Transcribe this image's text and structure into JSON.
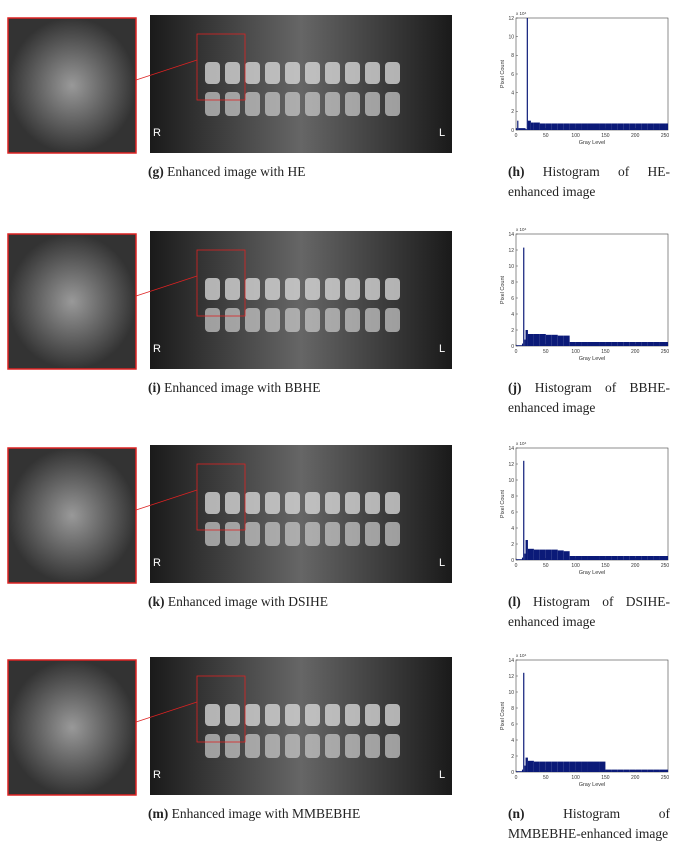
{
  "rows": [
    {
      "image_caption": {
        "letter": "(g)",
        "text": "Enhanced image with HE"
      },
      "image_marks": {
        "left": "R",
        "right": "L"
      },
      "histogram_caption": {
        "letter": "(h)",
        "text": "Histogram of HE-enhanced image"
      },
      "histogram": {
        "type": "bar",
        "y_label": "Pixel Count",
        "x_label": "Gray Level",
        "scale_label": "x 10⁴",
        "color": "#0b1a78",
        "x": [
          0,
          2,
          4,
          16,
          18,
          20,
          25,
          30,
          40,
          50,
          60,
          70,
          80,
          90,
          100,
          110,
          120,
          130,
          140,
          150,
          160,
          170,
          180,
          190,
          200,
          210,
          220,
          230,
          240,
          250
        ],
        "values": [
          0.2,
          1.0,
          0.2,
          0.1,
          12,
          1.0,
          0.8,
          0.8,
          0.7,
          0.7,
          0.7,
          0.7,
          0.7,
          0.7,
          0.7,
          0.7,
          0.7,
          0.7,
          0.7,
          0.7,
          0.7,
          0.7,
          0.7,
          0.7,
          0.7,
          0.7,
          0.7,
          0.7,
          0.7,
          0.7
        ],
        "xlim": [
          0,
          255
        ],
        "ylim": [
          0,
          12
        ],
        "xticks": [
          0,
          50,
          100,
          150,
          200,
          250
        ],
        "yticks": [
          0,
          2,
          4,
          6,
          8,
          10,
          12
        ]
      }
    },
    {
      "image_caption": {
        "letter": "(i)",
        "text": "Enhanced image with BBHE"
      },
      "image_marks": {
        "left": "R",
        "right": "L"
      },
      "histogram_caption": {
        "letter": "(j)",
        "text": "Histogram of BBHE-enhanced image"
      },
      "histogram": {
        "type": "bar",
        "y_label": "Pixel Count",
        "x_label": "Gray Level",
        "scale_label": "x 10⁴",
        "color": "#0b1a78",
        "x": [
          0,
          10,
          12,
          14,
          16,
          20,
          30,
          40,
          50,
          60,
          70,
          80,
          90,
          100,
          110,
          120,
          130,
          140,
          150,
          160,
          170,
          180,
          190,
          200,
          210,
          220,
          230,
          240,
          250
        ],
        "values": [
          0.1,
          0.3,
          12.3,
          0.8,
          2.0,
          1.5,
          1.5,
          1.5,
          1.4,
          1.4,
          1.3,
          1.3,
          0.5,
          0.5,
          0.5,
          0.5,
          0.5,
          0.5,
          0.5,
          0.5,
          0.5,
          0.5,
          0.5,
          0.5,
          0.5,
          0.5,
          0.5,
          0.5,
          0.5
        ],
        "xlim": [
          0,
          255
        ],
        "ylim": [
          0,
          14
        ],
        "xticks": [
          0,
          50,
          100,
          150,
          200,
          250
        ],
        "yticks": [
          0,
          2,
          4,
          6,
          8,
          10,
          12,
          14
        ]
      }
    },
    {
      "image_caption": {
        "letter": "(k)",
        "text": "Enhanced image with DSIHE"
      },
      "image_marks": {
        "left": "R",
        "right": "L"
      },
      "histogram_caption": {
        "letter": "(l)",
        "text": "Histogram of DSIHE-enhanced image"
      },
      "histogram": {
        "type": "bar",
        "y_label": "Pixel Count",
        "x_label": "Gray Level",
        "scale_label": "x 10⁴",
        "color": "#0b1a78",
        "x": [
          0,
          10,
          12,
          14,
          16,
          20,
          30,
          40,
          50,
          60,
          70,
          80,
          90,
          100,
          110,
          120,
          130,
          140,
          150,
          160,
          170,
          180,
          190,
          200,
          210,
          220,
          230,
          240,
          250
        ],
        "values": [
          0.1,
          0.3,
          12.4,
          0.8,
          2.5,
          1.4,
          1.3,
          1.3,
          1.3,
          1.3,
          1.2,
          1.1,
          0.5,
          0.5,
          0.5,
          0.5,
          0.5,
          0.5,
          0.5,
          0.5,
          0.5,
          0.5,
          0.5,
          0.5,
          0.5,
          0.5,
          0.5,
          0.5,
          0.5
        ],
        "xlim": [
          0,
          255
        ],
        "ylim": [
          0,
          14
        ],
        "xticks": [
          0,
          50,
          100,
          150,
          200,
          250
        ],
        "yticks": [
          0,
          2,
          4,
          6,
          8,
          10,
          12,
          14
        ]
      }
    },
    {
      "image_caption": {
        "letter": "(m)",
        "text": "Enhanced image with MMBEBHE"
      },
      "image_marks": {
        "left": "R",
        "right": "L"
      },
      "histogram_caption": {
        "letter": "(n)",
        "text": "Histogram of MMBEBHE-enhanced image"
      },
      "histogram": {
        "type": "bar",
        "y_label": "Pixel Count",
        "x_label": "Gray Level",
        "scale_label": "x 10⁴",
        "color": "#0b1a78",
        "x": [
          0,
          10,
          12,
          14,
          16,
          20,
          30,
          40,
          50,
          60,
          70,
          80,
          90,
          100,
          110,
          120,
          130,
          140,
          150,
          160,
          170,
          180,
          190,
          200,
          210,
          220,
          230,
          240,
          250
        ],
        "values": [
          0.1,
          0.3,
          12.4,
          0.8,
          1.8,
          1.4,
          1.3,
          1.3,
          1.3,
          1.3,
          1.3,
          1.3,
          1.3,
          1.3,
          1.3,
          1.3,
          1.3,
          1.3,
          0.3,
          0.3,
          0.3,
          0.3,
          0.3,
          0.3,
          0.3,
          0.3,
          0.3,
          0.3,
          0.3
        ],
        "xlim": [
          0,
          255
        ],
        "ylim": [
          0,
          14
        ],
        "xticks": [
          0,
          50,
          100,
          150,
          200,
          250
        ],
        "yticks": [
          0,
          2,
          4,
          6,
          8,
          10,
          12,
          14
        ]
      }
    }
  ]
}
